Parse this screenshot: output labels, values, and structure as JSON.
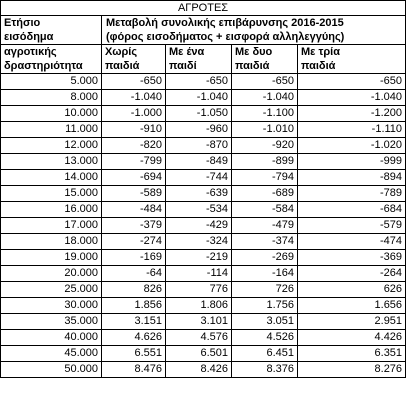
{
  "title": "ΑΓΡΟΤΕΣ",
  "header": {
    "col1_line1": "Ετήσιο",
    "col1_line2": "εισόδημα",
    "col1_line3": "αγροτικής",
    "col1_line4": "δραστηριότητα",
    "desc_line1": "Μεταβολή συνολικής επιβάρυνσης 2016-2015",
    "desc_line2": "(φόρος εισοδήματος + εισφορά αλληλεγγύης)",
    "sub": [
      {
        "line1": "Χωρίς",
        "line2": "παιδιά"
      },
      {
        "line1": "Με ένα",
        "line2": "παιδί"
      },
      {
        "line1": "Με δυο",
        "line2": "παιδιά"
      },
      {
        "line1": "Με τρία",
        "line2": "παιδιά"
      }
    ]
  },
  "rows": [
    [
      "5.000",
      "-650",
      "-650",
      "-650",
      "-650"
    ],
    [
      "8.000",
      "-1.040",
      "-1.040",
      "-1.040",
      "-1.040"
    ],
    [
      "10.000",
      "-1.000",
      "-1.050",
      "-1.100",
      "-1.200"
    ],
    [
      "11.000",
      "-910",
      "-960",
      "-1.010",
      "-1.110"
    ],
    [
      "12.000",
      "-820",
      "-870",
      "-920",
      "-1.020"
    ],
    [
      "13.000",
      "-799",
      "-849",
      "-899",
      "-999"
    ],
    [
      "14.000",
      "-694",
      "-744",
      "-794",
      "-894"
    ],
    [
      "15.000",
      "-589",
      "-639",
      "-689",
      "-789"
    ],
    [
      "16.000",
      "-484",
      "-534",
      "-584",
      "-684"
    ],
    [
      "17.000",
      "-379",
      "-429",
      "-479",
      "-579"
    ],
    [
      "18.000",
      "-274",
      "-324",
      "-374",
      "-474"
    ],
    [
      "19.000",
      "-169",
      "-219",
      "-269",
      "-369"
    ],
    [
      "20.000",
      "-64",
      "-114",
      "-164",
      "-264"
    ],
    [
      "25.000",
      "826",
      "776",
      "726",
      "626"
    ],
    [
      "30.000",
      "1.856",
      "1.806",
      "1.756",
      "1.656"
    ],
    [
      "35.000",
      "3.151",
      "3.101",
      "3.051",
      "2.951"
    ],
    [
      "40.000",
      "4.626",
      "4.576",
      "4.526",
      "4.426"
    ],
    [
      "45.000",
      "6.551",
      "6.501",
      "6.451",
      "6.351"
    ],
    [
      "50.000",
      "8.476",
      "8.426",
      "8.376",
      "8.276"
    ]
  ]
}
